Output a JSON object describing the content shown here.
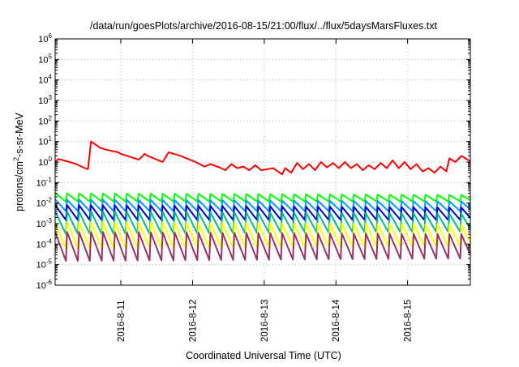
{
  "chart_data": {
    "type": "line",
    "title": "/data/run/goesPlots/archive/2016-08-15/21:00/flux/../flux/5daysMarsFluxes.txt",
    "xlabel": "Coordinated Universal Time (UTC)",
    "ylabel_parts": {
      "base": "protons/cm",
      "sup": "2",
      "rest": "-s-sr-MeV"
    },
    "y_scale": "log",
    "ylim": [
      1e-06,
      1000000.0
    ],
    "y_ticks": [
      {
        "base": "10",
        "exp": "-6"
      },
      {
        "base": "10",
        "exp": "-5"
      },
      {
        "base": "10",
        "exp": "-4"
      },
      {
        "base": "10",
        "exp": "-3"
      },
      {
        "base": "10",
        "exp": "-2"
      },
      {
        "base": "10",
        "exp": "-1"
      },
      {
        "base": "10",
        "exp": "0"
      },
      {
        "base": "10",
        "exp": "1"
      },
      {
        "base": "10",
        "exp": "2"
      },
      {
        "base": "10",
        "exp": "3"
      },
      {
        "base": "10",
        "exp": "4"
      },
      {
        "base": "10",
        "exp": "5"
      },
      {
        "base": "10",
        "exp": "6"
      }
    ],
    "xlim": [
      "2016-08-10 02:00",
      "2016-08-15 21:00"
    ],
    "x_ticks": [
      "2016-8-11",
      "2016-8-12",
      "2016-8-13",
      "2016-8-14",
      "2016-8-15"
    ],
    "grid": true,
    "series": [
      {
        "color": "#ff0000",
        "x": [
          "2016-08-10 02:00",
          "2016-08-10 03:00",
          "2016-08-10 06:00",
          "2016-08-10 09:00",
          "2016-08-10 12:00",
          "2016-08-10 13:00",
          "2016-08-10 14:00",
          "2016-08-10 15:00",
          "2016-08-10 17:00",
          "2016-08-10 19:00",
          "2016-08-10 23:00",
          "2016-08-11 00:00",
          "2016-08-11 06:00",
          "2016-08-11 08:00",
          "2016-08-11 09:00",
          "2016-08-11 14:00",
          "2016-08-11 16:00",
          "2016-08-11 20:00",
          "2016-08-12 01:00",
          "2016-08-12 04:00",
          "2016-08-12 06:00",
          "2016-08-12 09:00",
          "2016-08-12 11:00",
          "2016-08-12 13:00",
          "2016-08-12 15:00",
          "2016-08-12 17:00",
          "2016-08-12 19:00",
          "2016-08-12 21:00",
          "2016-08-12 23:00",
          "2016-08-13 03:00",
          "2016-08-13 06:00",
          "2016-08-13 07:00",
          "2016-08-13 09:00",
          "2016-08-13 11:00",
          "2016-08-13 13:00",
          "2016-08-13 15:00",
          "2016-08-13 17:00",
          "2016-08-13 19:00",
          "2016-08-13 21:00",
          "2016-08-13 23:00",
          "2016-08-14 01:00",
          "2016-08-14 03:00",
          "2016-08-14 05:00",
          "2016-08-14 07:00",
          "2016-08-14 09:00",
          "2016-08-14 11:00",
          "2016-08-14 13:00",
          "2016-08-14 15:00",
          "2016-08-14 17:00",
          "2016-08-14 19:00",
          "2016-08-14 21:00",
          "2016-08-14 23:00",
          "2016-08-15 01:00",
          "2016-08-15 03:00",
          "2016-08-15 05:00",
          "2016-08-15 07:00",
          "2016-08-15 09:00",
          "2016-08-15 11:00",
          "2016-08-15 13:00",
          "2016-08-15 14:00",
          "2016-08-15 16:00",
          "2016-08-15 18:00",
          "2016-08-15 21:00"
        ],
        "y": [
          1.0,
          1.4,
          1.1,
          0.8,
          0.5,
          0.45,
          10.0,
          8.0,
          5.0,
          4.0,
          3.0,
          2.5,
          1.3,
          2.5,
          2.0,
          1.0,
          3.0,
          2.0,
          1.0,
          0.6,
          0.8,
          0.55,
          0.4,
          0.8,
          0.5,
          0.6,
          0.4,
          0.7,
          0.4,
          0.5,
          0.25,
          0.5,
          0.3,
          0.9,
          0.45,
          0.8,
          0.4,
          1.0,
          0.55,
          0.9,
          0.5,
          1.0,
          0.5,
          0.8,
          0.4,
          0.7,
          0.45,
          0.9,
          0.5,
          1.2,
          0.5,
          1.0,
          0.45,
          0.8,
          0.35,
          0.5,
          0.3,
          0.6,
          0.35,
          1.5,
          1.0,
          2.0,
          1.1
        ]
      },
      {
        "color": "#00ff00",
        "sawtooth": {
          "start": "2016-08-10 02:00",
          "period_hours": 4,
          "peaks": [
            0.03,
            0.025
          ],
          "troughs": [
            0.012,
            0.012
          ]
        }
      },
      {
        "color": "#0099ff",
        "sawtooth": {
          "start": "2016-08-10 02:00",
          "period_hours": 4,
          "peaks": [
            0.015,
            0.012
          ],
          "troughs": [
            0.004,
            0.004
          ]
        }
      },
      {
        "color": "#0000cc",
        "sawtooth": {
          "start": "2016-08-10 02:00",
          "period_hours": 4,
          "peaks": [
            0.008,
            0.006
          ],
          "troughs": [
            0.0015,
            0.0015
          ]
        }
      },
      {
        "color": "#00bb88",
        "sawtooth": {
          "start": "2016-08-10 02:00",
          "period_hours": 4,
          "peaks": [
            0.004,
            0.003
          ],
          "troughs": [
            0.0003,
            0.0004
          ]
        }
      },
      {
        "color": "#ffff00",
        "sawtooth": {
          "start": "2016-08-10 02:00",
          "period_hours": 4,
          "peaks": [
            0.0012,
            0.0009
          ],
          "troughs": [
            6e-05,
            8e-05
          ]
        }
      },
      {
        "color": "#993366",
        "sawtooth": {
          "start": "2016-08-10 02:00",
          "period_hours": 4,
          "peaks": [
            0.0004,
            0.0003
          ],
          "troughs": [
            1.5e-05,
            2e-05
          ]
        }
      }
    ]
  }
}
